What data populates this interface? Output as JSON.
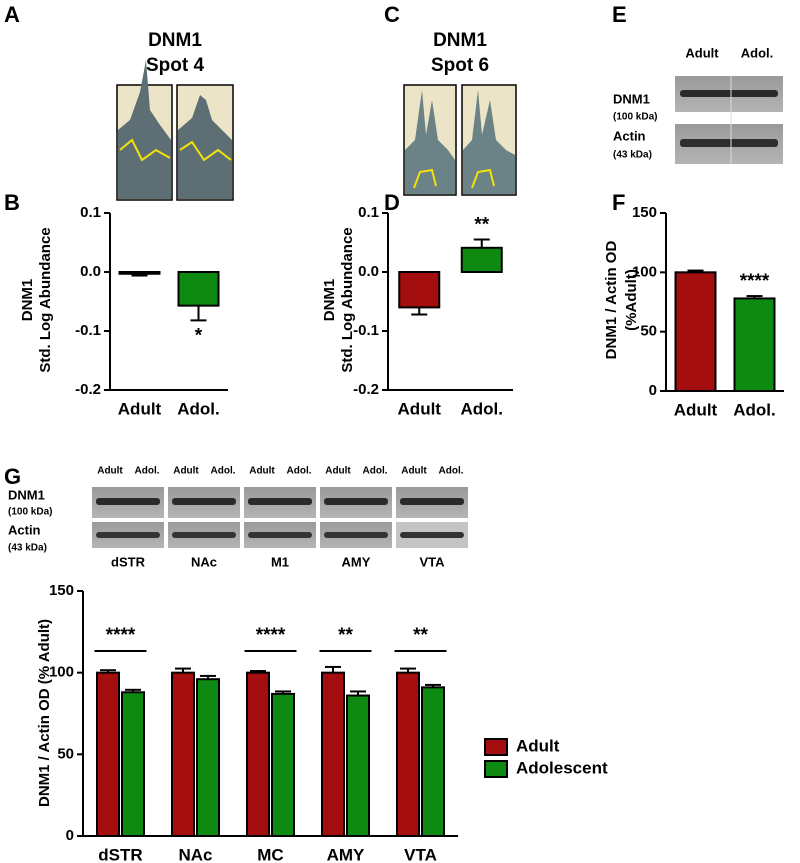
{
  "panel_labels": [
    "A",
    "B",
    "C",
    "D",
    "E",
    "F",
    "G"
  ],
  "spots": [
    [
      "DNM1",
      "Spot 4"
    ],
    [
      "DNM1",
      "Spot 6"
    ]
  ],
  "blot_e": {
    "columns": [
      "Adult",
      "Adol."
    ],
    "rows": [
      {
        "name": "DNM1",
        "size": "(100 kDa)"
      },
      {
        "name": "Actin",
        "size": "(43 kDa)"
      }
    ]
  },
  "blot_g": {
    "columns": [
      "Adult",
      "Adol."
    ],
    "rows": [
      {
        "name": "DNM1",
        "size": "(100 kDa)"
      },
      {
        "name": "Actin",
        "size": "(43 kDa)"
      }
    ],
    "regions": [
      "dSTR",
      "NAc",
      "M1",
      "AMY",
      "VTA"
    ]
  },
  "chart_data": [
    {
      "type": "bar",
      "y_label": [
        "DNM1",
        "Std. Log Abundance"
      ],
      "categories": [
        "Adult",
        "Adol."
      ],
      "values": [
        -0.003,
        -0.057
      ],
      "errors": [
        0.003,
        0.025
      ],
      "colors": [
        "#a50e0e",
        "#0e8a12"
      ],
      "annotations": [
        null,
        "*"
      ],
      "ylim": [
        -0.2,
        0.1
      ],
      "yticks": [
        -0.2,
        -0.1,
        {
          "value": 0,
          "label": "0.0"
        },
        0.1
      ]
    },
    {
      "type": "bar",
      "y_label": [
        "DNM1",
        "Std. Log Abundance"
      ],
      "categories": [
        "Adult",
        "Adol."
      ],
      "values": [
        -0.06,
        0.041
      ],
      "errors": [
        0.012,
        0.014
      ],
      "colors": [
        "#a50e0e",
        "#0e8a12"
      ],
      "annotations": [
        null,
        "**"
      ],
      "ylim": [
        -0.2,
        0.1
      ],
      "yticks": [
        -0.2,
        -0.1,
        {
          "value": 0,
          "label": "0.0"
        },
        0.1
      ]
    },
    {
      "type": "bar",
      "y_label": [
        "DNM1 / Actin OD",
        "(%Adult)"
      ],
      "categories": [
        "Adult",
        "Adol."
      ],
      "values": [
        100,
        78
      ],
      "errors": [
        1.5,
        2
      ],
      "colors": [
        "#a50e0e",
        "#0e8a12"
      ],
      "annotations": [
        null,
        "****"
      ],
      "ylim": [
        0,
        150
      ],
      "yticks": [
        0,
        50,
        100,
        150
      ]
    },
    {
      "type": "grouped-bar",
      "y_label": [
        "DNM1 / Actin OD (% Adult)"
      ],
      "categories": [
        "dSTR",
        "NAc",
        "MC",
        "AMY",
        "VTA"
      ],
      "series": [
        {
          "name": "Adult",
          "color": "#a50e0e",
          "values": [
            100,
            100,
            100,
            100,
            100
          ],
          "errors": [
            1.5,
            2.5,
            1,
            3.5,
            2.5
          ]
        },
        {
          "name": "Adolescent",
          "color": "#0e8a12",
          "values": [
            88,
            96,
            87,
            86,
            91
          ],
          "errors": [
            1.5,
            2,
            1.5,
            2.5,
            1.5
          ]
        }
      ],
      "significance": [
        "****",
        null,
        "****",
        "**",
        "**"
      ],
      "ylim": [
        0,
        150
      ],
      "yticks": [
        0,
        50,
        100,
        150
      ],
      "legend": "right"
    }
  ]
}
